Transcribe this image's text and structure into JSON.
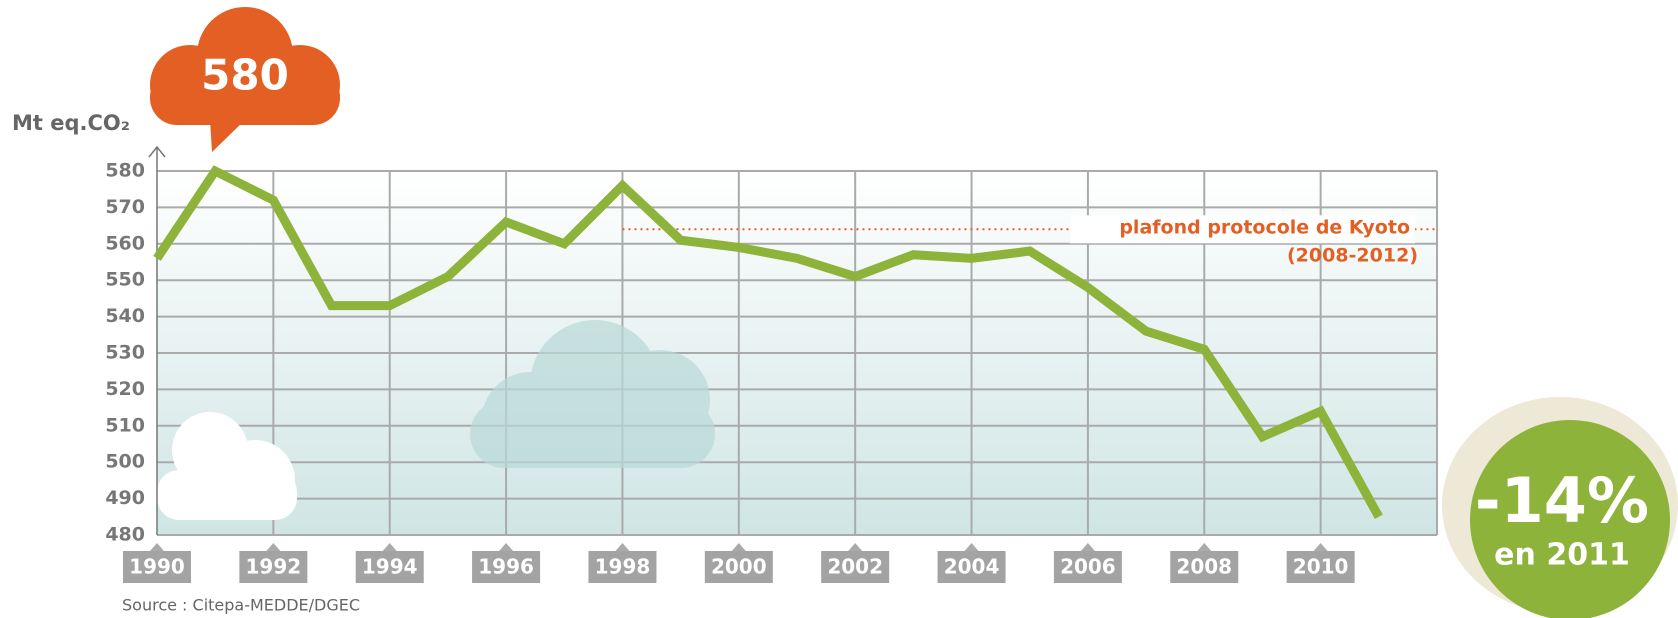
{
  "chart_data": {
    "type": "line",
    "ylabel": "Mt eq.CO₂",
    "x": [
      1990,
      1991,
      1992,
      1993,
      1994,
      1995,
      1996,
      1997,
      1998,
      1999,
      2000,
      2001,
      2002,
      2003,
      2004,
      2005,
      2006,
      2007,
      2008,
      2009,
      2010,
      2011
    ],
    "values": [
      556,
      580,
      572,
      543,
      543,
      551,
      566,
      560,
      576,
      561,
      559,
      556,
      551,
      557,
      556,
      558,
      548,
      536,
      531,
      507,
      514,
      485
    ],
    "color": "#8db33a",
    "xlim": [
      1990,
      2012
    ],
    "xticks": [
      1990,
      1992,
      1994,
      1996,
      1998,
      2000,
      2002,
      2004,
      2006,
      2008,
      2010
    ],
    "ylim": [
      480,
      580
    ],
    "yticks": [
      480,
      490,
      500,
      510,
      520,
      530,
      540,
      550,
      560,
      570,
      580
    ],
    "grid": true,
    "kyoto": {
      "value": 564,
      "from": 1998,
      "label": "plafond protocole de Kyoto",
      "period": "(2008-2012)"
    },
    "peak_label": "580",
    "badge": {
      "value": "-14%",
      "text": "en 2011"
    },
    "source": "Source : Citepa-MEDDE/DGEC"
  }
}
